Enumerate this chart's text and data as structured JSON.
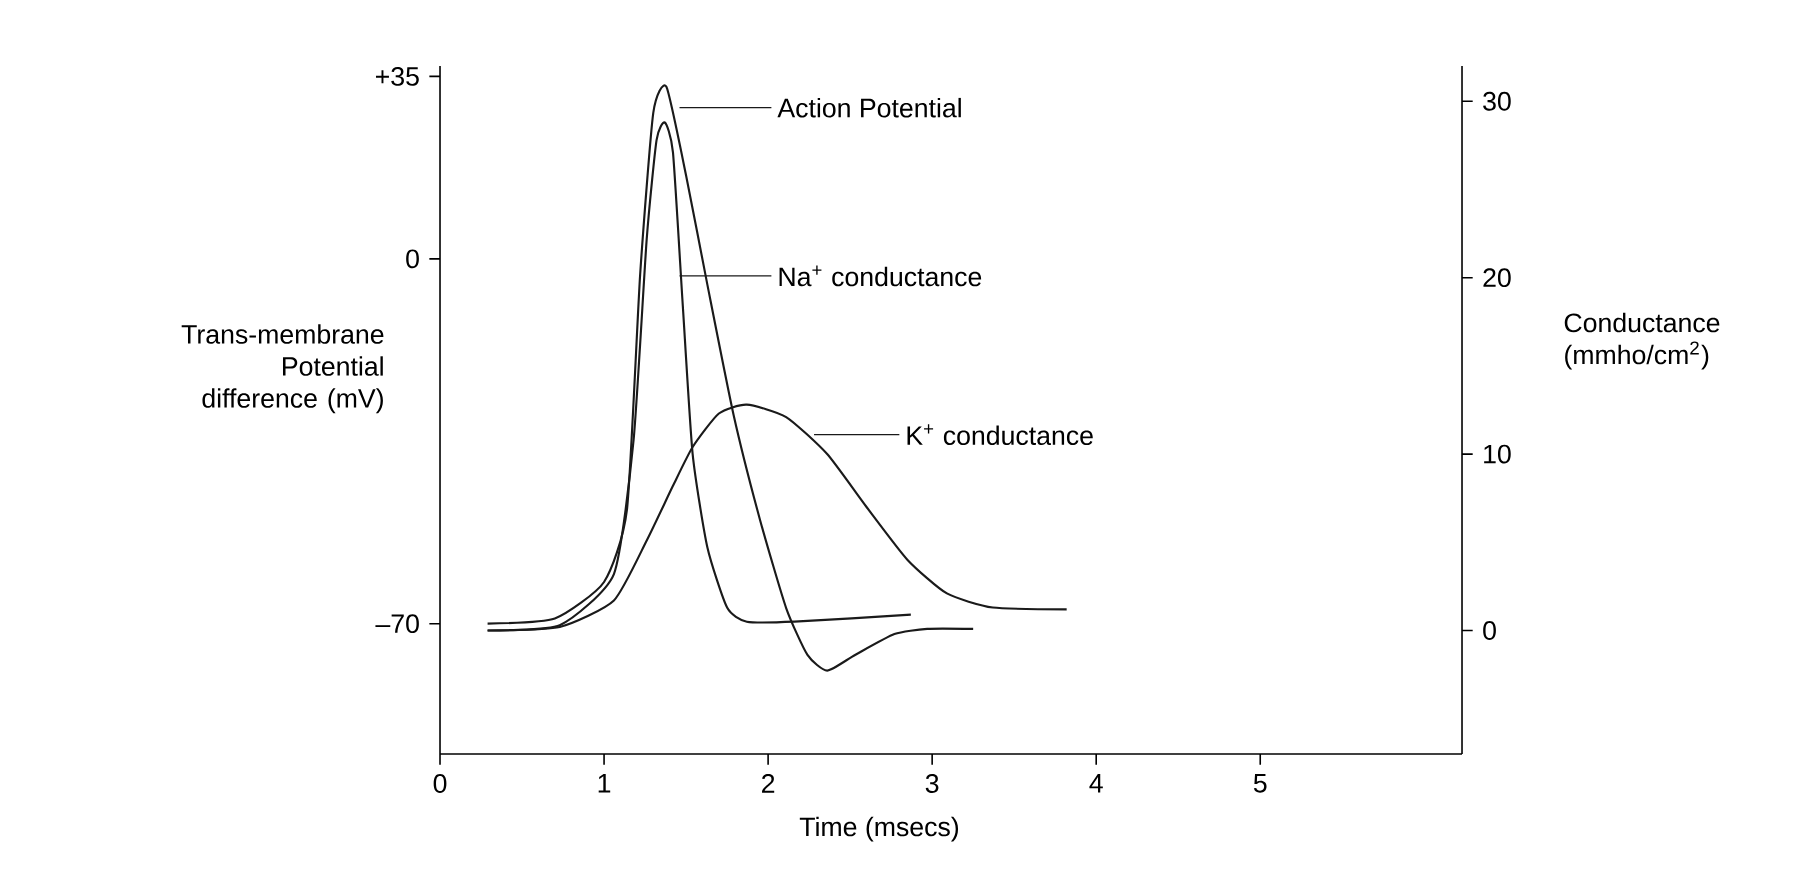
{
  "chart_data": {
    "type": "line",
    "xlabel": "Time (msecs)",
    "ylabel": "Trans-membrane Potential difference (mV)",
    "y2label": "Conductance (mmho/cm$^{2}$)",
    "xlim": [
      0,
      6.23
    ],
    "xticks": [
      0,
      1,
      2,
      3,
      4,
      5
    ],
    "ylim": [
      -95,
      37
    ],
    "yticks": [
      {
        "value": -70,
        "label": "–70"
      },
      0,
      {
        "value": 35,
        "label": "+35"
      }
    ],
    "y2lim": [
      -7,
      32
    ],
    "y2ticks": [
      0,
      10,
      20,
      30
    ],
    "grid": false,
    "legend": "top left",
    "marker": "none",
    "line_style": "solid",
    "series": [
      {
        "name": "Action Potential",
        "color": "#1a1a1a",
        "x": [
          0.29,
          0.7,
          1.0,
          1.14,
          1.22,
          1.3,
          1.38,
          1.5,
          1.63,
          1.79,
          1.95,
          2.11,
          2.24,
          2.36,
          2.53,
          2.77,
          2.97,
          3.25
        ],
        "values": [
          -70,
          -69,
          -62,
          -48,
          -3,
          28,
          33,
          16,
          -5,
          -30,
          -50,
          -67,
          -76,
          -79,
          -76,
          -72,
          -71,
          -71
        ]
      },
      {
        "name": "Na$^{+}$ conductance",
        "color": "#1a1a1a",
        "axis": "y2",
        "x": [
          0.29,
          0.73,
          1.06,
          1.18,
          1.26,
          1.32,
          1.37,
          1.42,
          1.48,
          1.54,
          1.63,
          1.75,
          1.87,
          2.16,
          2.87
        ],
        "values": [
          0,
          0.3,
          3.2,
          10.8,
          22.2,
          27.8,
          28.8,
          27.1,
          18.4,
          10.0,
          4.7,
          1.3,
          0.5,
          0.5,
          0.9
        ]
      },
      {
        "name": "K$^{+}$ conductance",
        "color": "#1a1a1a",
        "axis": "y2",
        "x": [
          0.29,
          0.73,
          1.06,
          1.26,
          1.42,
          1.54,
          1.7,
          1.87,
          2.11,
          2.36,
          2.6,
          2.85,
          3.09,
          3.37,
          3.82
        ],
        "values": [
          0,
          0.2,
          1.7,
          5.1,
          8.2,
          10.4,
          12.3,
          12.8,
          12.1,
          10.0,
          7.0,
          4.0,
          2.1,
          1.3,
          1.2
        ]
      }
    ]
  }
}
